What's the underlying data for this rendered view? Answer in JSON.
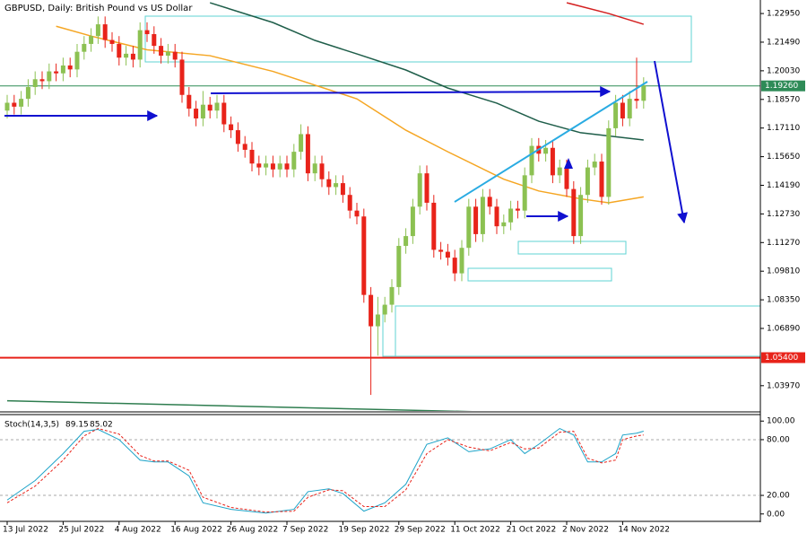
{
  "chart_data": [
    {
      "type": "candlestick",
      "title": "GBPUSD, Daily:  British Pound vs US Dollar",
      "categories": [
        "13 Jul 2022",
        null,
        null,
        null,
        null,
        null,
        null,
        null,
        "25 Jul 2022",
        null,
        null,
        null,
        null,
        null,
        null,
        null,
        "4 Aug 2022",
        null,
        null,
        null,
        null,
        null,
        null,
        null,
        "16 Aug 2022",
        null,
        null,
        null,
        null,
        null,
        null,
        null,
        "26 Aug 2022",
        null,
        null,
        null,
        null,
        null,
        null,
        null,
        "7 Sep 2022",
        null,
        null,
        null,
        null,
        null,
        null,
        null,
        "19 Sep 2022",
        null,
        null,
        null,
        null,
        null,
        null,
        null,
        "29 Sep 2022",
        null,
        null,
        null,
        null,
        null,
        null,
        null,
        "11 Oct 2022",
        null,
        null,
        null,
        null,
        null,
        null,
        null,
        "21 Oct 2022",
        null,
        null,
        null,
        null,
        null,
        null,
        null,
        "2 Nov 2022",
        null,
        null,
        null,
        null,
        null,
        null,
        null,
        "14 Nov 2022",
        null,
        null,
        null
      ],
      "open": [
        1.18,
        1.184,
        1.182,
        1.186,
        1.192,
        1.196,
        1.195,
        1.2,
        1.199,
        1.203,
        1.201,
        1.21,
        1.214,
        1.218,
        1.224,
        1.216,
        1.214,
        1.207,
        1.209,
        1.206,
        1.221,
        1.219,
        1.213,
        1.208,
        1.21,
        1.206,
        1.188,
        1.181,
        1.176,
        1.183,
        1.18,
        1.184,
        1.173,
        1.17,
        1.163,
        1.16,
        1.153,
        1.151,
        1.153,
        1.15,
        1.153,
        1.15,
        1.159,
        1.168,
        1.148,
        1.153,
        1.145,
        1.141,
        1.143,
        1.137,
        1.129,
        1.126,
        1.086,
        1.07,
        1.076,
        1.081,
        1.09,
        1.111,
        1.116,
        1.131,
        1.148,
        1.133,
        1.109,
        1.108,
        1.105,
        1.097,
        1.11,
        1.131,
        1.117,
        1.136,
        1.131,
        1.121,
        1.123,
        1.13,
        1.129,
        1.147,
        1.162,
        1.158,
        1.161,
        1.147,
        1.151,
        1.14,
        1.116,
        1.137,
        1.151,
        1.154,
        1.136,
        1.171,
        1.184,
        1.176,
        1.186,
        1.185
      ],
      "high": [
        1.188,
        1.188,
        1.19,
        1.196,
        1.2,
        1.2,
        1.204,
        1.204,
        1.207,
        1.207,
        1.214,
        1.218,
        1.222,
        1.228,
        1.228,
        1.22,
        1.218,
        1.213,
        1.213,
        1.225,
        1.225,
        1.223,
        1.217,
        1.214,
        1.214,
        1.21,
        1.192,
        1.185,
        1.19,
        1.187,
        1.188,
        1.188,
        1.177,
        1.174,
        1.167,
        1.164,
        1.157,
        1.157,
        1.157,
        1.157,
        1.157,
        1.163,
        1.173,
        1.172,
        1.157,
        1.157,
        1.149,
        1.147,
        1.147,
        1.141,
        1.133,
        1.13,
        1.09,
        1.085,
        1.085,
        1.094,
        1.115,
        1.12,
        1.135,
        1.152,
        1.152,
        1.137,
        1.113,
        1.112,
        1.109,
        1.114,
        1.135,
        1.135,
        1.14,
        1.14,
        1.135,
        1.127,
        1.134,
        1.134,
        1.151,
        1.166,
        1.166,
        1.165,
        1.165,
        1.155,
        1.155,
        1.144,
        1.141,
        1.155,
        1.158,
        1.158,
        1.175,
        1.188,
        1.188,
        1.19,
        1.207,
        1.197
      ],
      "low": [
        1.176,
        1.178,
        1.178,
        1.182,
        1.188,
        1.191,
        1.191,
        1.195,
        1.195,
        1.197,
        1.197,
        1.206,
        1.21,
        1.214,
        1.212,
        1.21,
        1.203,
        1.203,
        1.202,
        1.202,
        1.215,
        1.209,
        1.204,
        1.204,
        1.202,
        1.184,
        1.177,
        1.172,
        1.172,
        1.176,
        1.176,
        1.169,
        1.166,
        1.159,
        1.156,
        1.149,
        1.147,
        1.147,
        1.146,
        1.146,
        1.146,
        1.146,
        1.155,
        1.144,
        1.144,
        1.141,
        1.137,
        1.137,
        1.133,
        1.125,
        1.122,
        1.082,
        1.035,
        1.055,
        1.072,
        1.077,
        1.086,
        1.107,
        1.112,
        1.127,
        1.129,
        1.105,
        1.104,
        1.101,
        1.093,
        1.093,
        1.106,
        1.113,
        1.113,
        1.127,
        1.117,
        1.117,
        1.119,
        1.125,
        1.125,
        1.143,
        1.154,
        1.154,
        1.143,
        1.143,
        1.136,
        1.112,
        1.112,
        1.133,
        1.147,
        1.132,
        1.132,
        1.167,
        1.172,
        1.172,
        1.181,
        1.181
      ],
      "close": [
        1.184,
        1.182,
        1.186,
        1.192,
        1.196,
        1.195,
        1.2,
        1.199,
        1.203,
        1.201,
        1.21,
        1.214,
        1.218,
        1.224,
        1.216,
        1.214,
        1.207,
        1.209,
        1.206,
        1.221,
        1.219,
        1.213,
        1.208,
        1.21,
        1.206,
        1.188,
        1.181,
        1.176,
        1.183,
        1.18,
        1.184,
        1.173,
        1.17,
        1.163,
        1.16,
        1.153,
        1.151,
        1.153,
        1.15,
        1.153,
        1.15,
        1.159,
        1.168,
        1.148,
        1.153,
        1.145,
        1.141,
        1.143,
        1.137,
        1.129,
        1.126,
        1.086,
        1.07,
        1.076,
        1.081,
        1.09,
        1.111,
        1.116,
        1.131,
        1.148,
        1.133,
        1.109,
        1.108,
        1.105,
        1.097,
        1.11,
        1.131,
        1.117,
        1.136,
        1.131,
        1.121,
        1.123,
        1.13,
        1.129,
        1.147,
        1.162,
        1.158,
        1.161,
        1.147,
        1.151,
        1.14,
        1.116,
        1.137,
        1.151,
        1.154,
        1.136,
        1.171,
        1.184,
        1.176,
        1.186,
        1.185,
        1.193
      ],
      "up_color": "#8cc152",
      "down_color": "#e8231a",
      "ylim": [
        1.0268,
        1.2364
      ],
      "yticks": [
        {
          "value": 1.2295,
          "label": "1.22950"
        },
        {
          "value": 1.2149,
          "label": "1.21490"
        },
        {
          "value": 1.2003,
          "label": "1.20030"
        },
        {
          "value": 1.1857,
          "label": "1.18570"
        },
        {
          "value": 1.1711,
          "label": "1.17110"
        },
        {
          "value": 1.1565,
          "label": "1.15650"
        },
        {
          "value": 1.1419,
          "label": "1.14190"
        },
        {
          "value": 1.1273,
          "label": "1.12730"
        },
        {
          "value": 1.1127,
          "label": "1.11270"
        },
        {
          "value": 1.0981,
          "label": "1.09810"
        },
        {
          "value": 1.0835,
          "label": "1.08350"
        },
        {
          "value": 1.0689,
          "label": "1.06890"
        },
        {
          "value": 1.0397,
          "label": "1.03970"
        }
      ],
      "overlays": [
        {
          "color": "#f5a623",
          "x": [
            7,
            12,
            20,
            29,
            38,
            50,
            57,
            63,
            71,
            76,
            82,
            86,
            91
          ],
          "values": [
            1.223,
            1.218,
            1.211,
            1.208,
            1.2,
            1.186,
            1.17,
            1.159,
            1.145,
            1.139,
            1.135,
            1.133,
            1.136
          ]
        },
        {
          "color": "#1f5e4a",
          "x": [
            29,
            38,
            44,
            50,
            57,
            63,
            70,
            76,
            82,
            91
          ],
          "values": [
            1.235,
            1.2249,
            1.2158,
            1.2089,
            1.2007,
            1.1915,
            1.1838,
            1.1746,
            1.1687,
            1.165
          ]
        },
        {
          "color": "#d42020",
          "x": [
            80,
            86,
            91
          ],
          "values": [
            1.235,
            1.2295,
            1.224
          ]
        },
        {
          "color": "#2e7d4f",
          "x": [
            0,
            78
          ],
          "values": [
            1.032,
            1.0255
          ]
        }
      ],
      "price_lines": [
        {
          "value": 1.1926,
          "label": "1.19260",
          "color": "#2e8b57"
        },
        {
          "value": 1.054,
          "label": "1.05400",
          "color": "#e8231a"
        }
      ]
    },
    {
      "type": "stochastic",
      "title": "Stoch(14,3,5)",
      "ylim": [
        -7,
        107
      ],
      "yticks": [
        {
          "value": 100,
          "label": "100.00"
        },
        {
          "value": 80,
          "label": "80.00"
        },
        {
          "value": 20,
          "label": "20.00"
        },
        {
          "value": 0,
          "label": "0.00"
        }
      ],
      "dashed_levels": [
        80,
        20
      ],
      "series": [
        {
          "color": "#1ca3c8",
          "dash": false,
          "x": [
            0,
            4,
            8,
            11,
            13,
            16,
            19,
            21,
            23,
            26,
            28,
            32,
            37,
            41,
            43,
            46,
            48,
            51,
            54,
            57,
            60,
            63,
            66,
            69,
            72,
            74,
            76,
            79,
            81,
            83,
            85,
            87,
            88,
            90,
            91
          ],
          "values": [
            15,
            36,
            65,
            89,
            91,
            80,
            58,
            56,
            56,
            41,
            12,
            5,
            1,
            5,
            24,
            27,
            22,
            3,
            12,
            32,
            75,
            82,
            67,
            70,
            80,
            65,
            75,
            92,
            85,
            56,
            56,
            65,
            85,
            87,
            89.15
          ]
        },
        {
          "color": "#e8231a",
          "dash": true,
          "x": [
            0,
            4,
            8,
            11,
            13,
            16,
            19,
            21,
            23,
            26,
            28,
            32,
            37,
            41,
            43,
            46,
            48,
            51,
            54,
            57,
            60,
            63,
            66,
            69,
            72,
            74,
            76,
            79,
            81,
            83,
            85,
            87,
            88,
            90,
            91
          ],
          "values": [
            12,
            30,
            58,
            84,
            92,
            86,
            63,
            57,
            57,
            47,
            18,
            7,
            2,
            3,
            18,
            26,
            25,
            8,
            8,
            26,
            65,
            80,
            72,
            68,
            77,
            70,
            71,
            88,
            89,
            60,
            55,
            58,
            80,
            84,
            85.02
          ]
        }
      ]
    }
  ]
}
